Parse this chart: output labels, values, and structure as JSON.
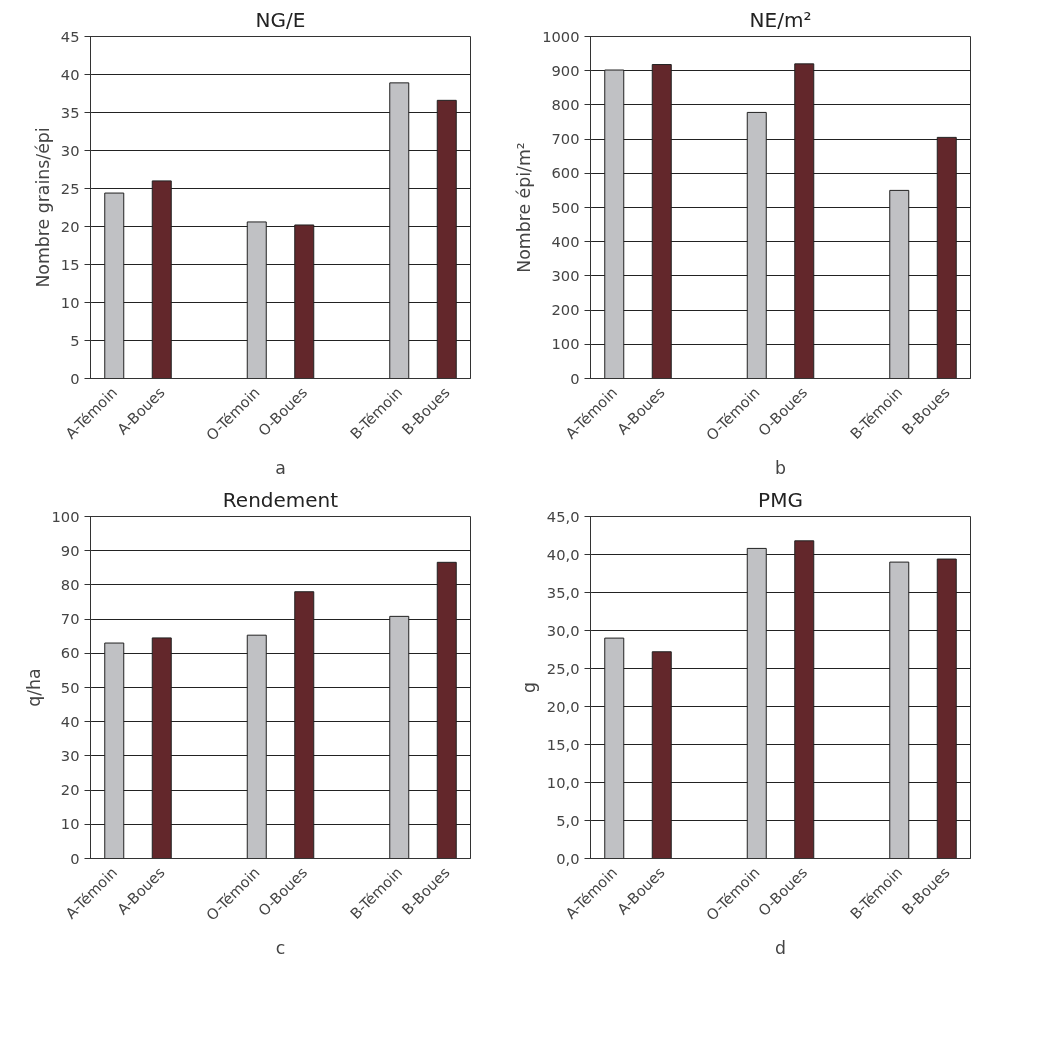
{
  "chart_data": [
    {
      "type": "bar",
      "title": "NG/E",
      "ylabel": "Nombre grains/épi",
      "xlabel": "a",
      "categories": [
        "A-Témoin",
        "A-Boues",
        null,
        "O-Témoin",
        "O-Boues",
        null,
        "B-Témoin",
        "B-Boues"
      ],
      "values": [
        24.4,
        26,
        null,
        20.6,
        20.2,
        null,
        38.9,
        36.6
      ],
      "colors": [
        "#c0c1c4",
        "#63272b",
        "#c0c1c4",
        "#c0c1c4",
        "#63272b",
        "#c0c1c4",
        "#c0c1c4",
        "#63272b"
      ],
      "ylim": [
        0,
        45
      ],
      "yticks": [
        0,
        5,
        10,
        15,
        20,
        25,
        30,
        35,
        40,
        45
      ],
      "grid": "y"
    },
    {
      "type": "bar",
      "title": "NE/m²",
      "ylabel": "Nombre épi/m²",
      "xlabel": "b",
      "categories": [
        "A-Témoin",
        "A-Boues",
        null,
        "O-Témoin",
        "O-Boues",
        null,
        "B-Témoin",
        "B-Boues"
      ],
      "values": [
        902,
        918,
        null,
        778,
        920,
        null,
        550,
        705
      ],
      "colors": [
        "#c0c1c4",
        "#63272b",
        "#c0c1c4",
        "#c0c1c4",
        "#63272b",
        "#c0c1c4",
        "#c0c1c4",
        "#63272b"
      ],
      "ylim": [
        0,
        1000
      ],
      "yticks": [
        0,
        100,
        200,
        300,
        400,
        500,
        600,
        700,
        800,
        900,
        1000
      ],
      "grid": "y"
    },
    {
      "type": "bar",
      "title": "Rendement",
      "ylabel": "q/ha",
      "xlabel": "c",
      "categories": [
        "A-Témoin",
        "A-Boues",
        null,
        "O-Témoin",
        "O-Boues",
        null,
        "B-Témoin",
        "B-Boues"
      ],
      "values": [
        63,
        64.5,
        null,
        65.3,
        78,
        null,
        70.8,
        86.6
      ],
      "colors": [
        "#c0c1c4",
        "#63272b",
        "#c0c1c4",
        "#c0c1c4",
        "#63272b",
        "#c0c1c4",
        "#c0c1c4",
        "#63272b"
      ],
      "ylim": [
        0,
        100
      ],
      "yticks": [
        0,
        10,
        20,
        30,
        40,
        50,
        60,
        70,
        80,
        90,
        100
      ],
      "grid": "y"
    },
    {
      "type": "bar",
      "title": "PMG",
      "ylabel": "g",
      "xlabel": "d",
      "categories": [
        "A-Témoin",
        "A-Boues",
        null,
        "O-Témoin",
        "O-Boues",
        null,
        "B-Témoin",
        "B-Boues"
      ],
      "values": [
        29.0,
        27.2,
        null,
        40.8,
        41.8,
        null,
        39.0,
        39.4
      ],
      "colors": [
        "#c0c1c4",
        "#63272b",
        "#c0c1c4",
        "#c0c1c4",
        "#63272b",
        "#c0c1c4",
        "#c0c1c4",
        "#63272b"
      ],
      "ylim": [
        0,
        45
      ],
      "yticks": [
        {
          "value": 0,
          "label": "0,0"
        },
        {
          "value": 5,
          "label": "5,0"
        },
        {
          "value": 10,
          "label": "10,0"
        },
        {
          "value": 15,
          "label": "15,0"
        },
        {
          "value": 20,
          "label": "20,0"
        },
        {
          "value": 25,
          "label": "25,0"
        },
        {
          "value": 30,
          "label": "30,0"
        },
        {
          "value": 35,
          "label": "35,0"
        },
        {
          "value": 40,
          "label": "40,0"
        },
        {
          "value": 45,
          "label": "45,0"
        }
      ],
      "grid": "y"
    }
  ]
}
